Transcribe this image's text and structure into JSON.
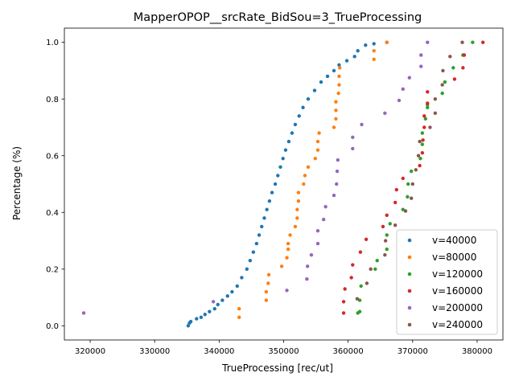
{
  "chart_data": {
    "type": "scatter",
    "title": "MapperOPOP__srcRate_BidSou=3_TrueProcessing",
    "xlabel": "TrueProcessing [rec/ut]",
    "ylabel": "Percentage (%)",
    "xlim": [
      316000,
      384000
    ],
    "ylim": [
      -0.05,
      1.05
    ],
    "x_ticks": [
      320000,
      330000,
      340000,
      350000,
      360000,
      370000,
      380000
    ],
    "y_ticks": [
      0.0,
      0.2,
      0.4,
      0.6,
      0.8,
      1.0
    ],
    "x_tick_labels": [
      "320000",
      "330000",
      "340000",
      "350000",
      "360000",
      "370000",
      "380000"
    ],
    "y_tick_labels": [
      "0.0",
      "0.2",
      "0.4",
      "0.6",
      "0.8",
      "1.0"
    ],
    "grid": false,
    "legend_position": "lower-right",
    "series": [
      {
        "name": "v=40000",
        "color": "#1f77b4",
        "points": [
          [
            335200,
            0.0
          ],
          [
            335400,
            0.01
          ],
          [
            335600,
            0.015
          ],
          [
            336500,
            0.025
          ],
          [
            337200,
            0.03
          ],
          [
            337800,
            0.04
          ],
          [
            338500,
            0.05
          ],
          [
            339300,
            0.06
          ],
          [
            339800,
            0.075
          ],
          [
            340500,
            0.09
          ],
          [
            341300,
            0.105
          ],
          [
            342000,
            0.12
          ],
          [
            342800,
            0.14
          ],
          [
            343500,
            0.17
          ],
          [
            344300,
            0.2
          ],
          [
            344800,
            0.23
          ],
          [
            345300,
            0.26
          ],
          [
            345800,
            0.29
          ],
          [
            346200,
            0.32
          ],
          [
            346600,
            0.35
          ],
          [
            347000,
            0.38
          ],
          [
            347400,
            0.41
          ],
          [
            347800,
            0.44
          ],
          [
            348200,
            0.47
          ],
          [
            348700,
            0.5
          ],
          [
            349100,
            0.53
          ],
          [
            349500,
            0.56
          ],
          [
            349900,
            0.59
          ],
          [
            350300,
            0.62
          ],
          [
            350800,
            0.65
          ],
          [
            351300,
            0.68
          ],
          [
            351800,
            0.71
          ],
          [
            352400,
            0.74
          ],
          [
            353000,
            0.77
          ],
          [
            353800,
            0.8
          ],
          [
            354800,
            0.83
          ],
          [
            355800,
            0.86
          ],
          [
            356800,
            0.88
          ],
          [
            357800,
            0.9
          ],
          [
            358600,
            0.92
          ],
          [
            359800,
            0.935
          ],
          [
            361000,
            0.95
          ],
          [
            361500,
            0.97
          ],
          [
            362700,
            0.99
          ],
          [
            364000,
            0.995
          ],
          [
            366000,
            1.0
          ]
        ]
      },
      {
        "name": "v=80000",
        "color": "#ff7f0e",
        "points": [
          [
            343100,
            0.03
          ],
          [
            343100,
            0.06
          ],
          [
            347300,
            0.09
          ],
          [
            347300,
            0.12
          ],
          [
            347600,
            0.15
          ],
          [
            347700,
            0.18
          ],
          [
            349700,
            0.21
          ],
          [
            350500,
            0.24
          ],
          [
            350700,
            0.27
          ],
          [
            350700,
            0.29
          ],
          [
            351000,
            0.32
          ],
          [
            351800,
            0.35
          ],
          [
            352100,
            0.38
          ],
          [
            352100,
            0.41
          ],
          [
            352300,
            0.44
          ],
          [
            352300,
            0.47
          ],
          [
            353100,
            0.5
          ],
          [
            353300,
            0.53
          ],
          [
            353800,
            0.56
          ],
          [
            354900,
            0.59
          ],
          [
            355300,
            0.62
          ],
          [
            355300,
            0.65
          ],
          [
            355500,
            0.68
          ],
          [
            357800,
            0.7
          ],
          [
            358100,
            0.73
          ],
          [
            358100,
            0.76
          ],
          [
            358100,
            0.79
          ],
          [
            358500,
            0.82
          ],
          [
            358600,
            0.85
          ],
          [
            358600,
            0.88
          ],
          [
            358700,
            0.91
          ],
          [
            364000,
            0.94
          ],
          [
            364000,
            0.97
          ],
          [
            366000,
            1.0
          ]
        ]
      },
      {
        "name": "v=120000",
        "color": "#2ca02c",
        "points": [
          [
            361500,
            0.045
          ],
          [
            361800,
            0.05
          ],
          [
            361800,
            0.09
          ],
          [
            362000,
            0.14
          ],
          [
            364200,
            0.2
          ],
          [
            364500,
            0.23
          ],
          [
            366000,
            0.27
          ],
          [
            366000,
            0.32
          ],
          [
            366500,
            0.36
          ],
          [
            368500,
            0.41
          ],
          [
            369200,
            0.455
          ],
          [
            369300,
            0.5
          ],
          [
            369800,
            0.545
          ],
          [
            371200,
            0.59
          ],
          [
            371500,
            0.64
          ],
          [
            371500,
            0.68
          ],
          [
            372000,
            0.73
          ],
          [
            372300,
            0.77
          ],
          [
            372300,
            0.78
          ],
          [
            374600,
            0.82
          ],
          [
            375000,
            0.86
          ],
          [
            376300,
            0.91
          ],
          [
            377800,
            0.955
          ],
          [
            379300,
            1.0
          ]
        ]
      },
      {
        "name": "v=160000",
        "color": "#d62728",
        "points": [
          [
            359300,
            0.045
          ],
          [
            359300,
            0.085
          ],
          [
            359500,
            0.13
          ],
          [
            360500,
            0.17
          ],
          [
            360700,
            0.215
          ],
          [
            361900,
            0.26
          ],
          [
            362800,
            0.305
          ],
          [
            365400,
            0.35
          ],
          [
            366000,
            0.39
          ],
          [
            367300,
            0.435
          ],
          [
            367500,
            0.48
          ],
          [
            368500,
            0.52
          ],
          [
            371100,
            0.565
          ],
          [
            371500,
            0.61
          ],
          [
            371600,
            0.655
          ],
          [
            371800,
            0.7
          ],
          [
            371800,
            0.74
          ],
          [
            372300,
            0.785
          ],
          [
            372300,
            0.825
          ],
          [
            376500,
            0.87
          ],
          [
            377800,
            0.91
          ],
          [
            378000,
            0.955
          ],
          [
            380900,
            1.0
          ]
        ]
      },
      {
        "name": "v=200000",
        "color": "#9467bd",
        "points": [
          [
            319000,
            0.045
          ],
          [
            339100,
            0.085
          ],
          [
            350500,
            0.125
          ],
          [
            353600,
            0.165
          ],
          [
            353700,
            0.21
          ],
          [
            354300,
            0.25
          ],
          [
            355300,
            0.29
          ],
          [
            355300,
            0.335
          ],
          [
            356200,
            0.375
          ],
          [
            356500,
            0.42
          ],
          [
            357800,
            0.46
          ],
          [
            358200,
            0.5
          ],
          [
            358300,
            0.545
          ],
          [
            358400,
            0.585
          ],
          [
            360700,
            0.625
          ],
          [
            360700,
            0.665
          ],
          [
            362100,
            0.71
          ],
          [
            365700,
            0.75
          ],
          [
            367900,
            0.795
          ],
          [
            368500,
            0.835
          ],
          [
            369500,
            0.875
          ],
          [
            371300,
            0.915
          ],
          [
            371300,
            0.955
          ],
          [
            372300,
            1.0
          ]
        ]
      },
      {
        "name": "v=240000",
        "color": "#8c564b",
        "points": [
          [
            361400,
            0.095
          ],
          [
            362900,
            0.15
          ],
          [
            363500,
            0.2
          ],
          [
            365700,
            0.25
          ],
          [
            365800,
            0.3
          ],
          [
            367300,
            0.355
          ],
          [
            368900,
            0.405
          ],
          [
            369800,
            0.45
          ],
          [
            370000,
            0.5
          ],
          [
            370500,
            0.55
          ],
          [
            370900,
            0.6
          ],
          [
            371100,
            0.65
          ],
          [
            372700,
            0.7
          ],
          [
            373500,
            0.75
          ],
          [
            373500,
            0.8
          ],
          [
            374600,
            0.85
          ],
          [
            374700,
            0.9
          ],
          [
            375800,
            0.95
          ],
          [
            377700,
            1.0
          ]
        ]
      }
    ]
  }
}
